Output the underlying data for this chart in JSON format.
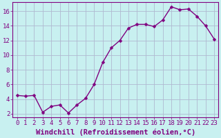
{
  "x": [
    0,
    1,
    2,
    3,
    4,
    5,
    6,
    7,
    8,
    9,
    10,
    11,
    12,
    13,
    14,
    15,
    16,
    17,
    18,
    19,
    20,
    21,
    22,
    23
  ],
  "y": [
    4.5,
    4.4,
    4.5,
    2.2,
    3.0,
    3.2,
    2.1,
    3.2,
    4.1,
    6.0,
    9.0,
    11.0,
    12.0,
    13.7,
    14.2,
    14.2,
    13.9,
    14.8,
    16.6,
    16.2,
    16.3,
    15.3,
    14.0,
    12.2
  ],
  "line_color": "#800080",
  "marker_color": "#800080",
  "bg_color": "#c8f0f0",
  "grid_color": "#b0b8d0",
  "xlabel": "Windchill (Refroidissement éolien,°C)",
  "ylabel": "",
  "title": "",
  "xlim": [
    -0.5,
    23.5
  ],
  "ylim": [
    1.5,
    17.2
  ],
  "yticks": [
    2,
    4,
    6,
    8,
    10,
    12,
    14,
    16
  ],
  "xticks": [
    0,
    1,
    2,
    3,
    4,
    5,
    6,
    7,
    8,
    9,
    10,
    11,
    12,
    13,
    14,
    15,
    16,
    17,
    18,
    19,
    20,
    21,
    22,
    23
  ],
  "font_color": "#800080",
  "font_family": "monospace",
  "font_size": 6.5,
  "xlabel_fontsize": 7.5,
  "marker_size": 2.5,
  "line_width": 1.0
}
